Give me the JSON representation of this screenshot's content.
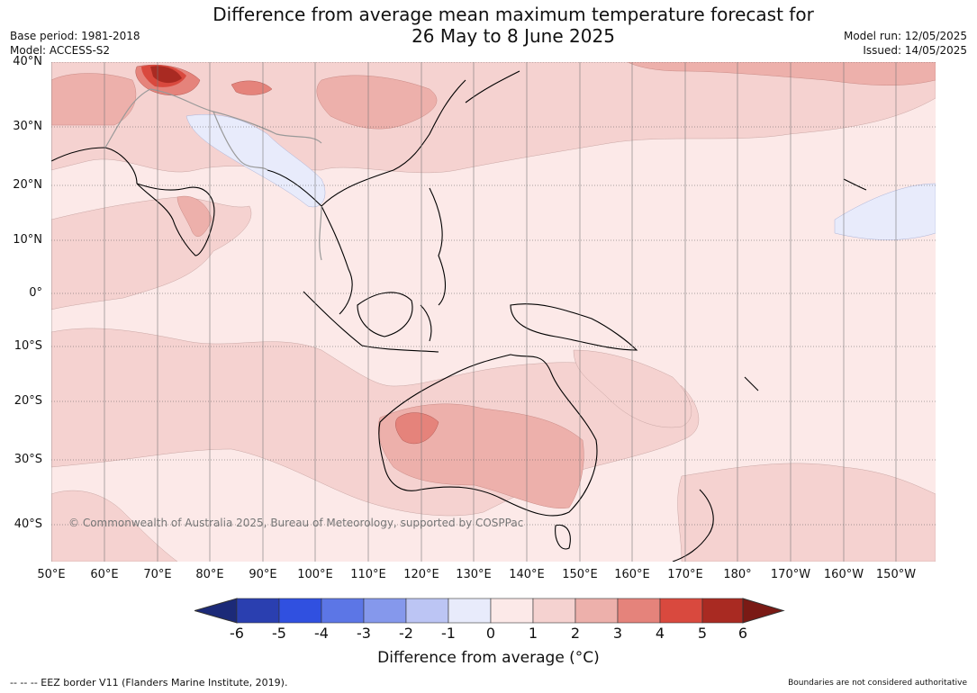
{
  "title_line1": "Difference from average mean maximum temperature forecast for",
  "title_line2": "26 May to 8 June 2025",
  "meta_left": [
    "Base period: 1981-2018",
    "Model: ACCESS-S2"
  ],
  "meta_right": [
    "Model run: 12/05/2025",
    "Issued: 14/05/2025"
  ],
  "lat_labels": [
    "40°N",
    "30°N",
    "20°N",
    "10°N",
    "0°",
    "10°S",
    "20°S",
    "30°S",
    "40°S"
  ],
  "lon_labels": [
    "50°E",
    "60°E",
    "70°E",
    "80°E",
    "90°E",
    "100°E",
    "110°E",
    "120°E",
    "130°E",
    "140°E",
    "150°E",
    "160°E",
    "170°E",
    "180°",
    "170°W",
    "160°W",
    "150°W"
  ],
  "copyright": "© Commonwealth of Australia 2025, Bureau of Meteorology, supported by COSPPac",
  "colorbar": {
    "label": "Difference from average (°C)",
    "ticks": [
      "-6",
      "-5",
      "-4",
      "-3",
      "-2",
      "-1",
      "0",
      "1",
      "2",
      "3",
      "4",
      "5",
      "6"
    ],
    "colors": [
      "#1c2a78",
      "#2a3fb0",
      "#3050e0",
      "#5c76e6",
      "#8598ec",
      "#bcc5f4",
      "#e8ebfb",
      "#fce9e8",
      "#f5d2d0",
      "#edb0ab",
      "#e5837b",
      "#d9493e",
      "#a92a22",
      "#7a1a15"
    ]
  },
  "footer_left": "--  --  -- EEZ border V11 (Flanders Marine Institute, 2019).",
  "footer_right": "Boundaries are not considered authoritative",
  "map_regions": [
    {
      "name": "background",
      "color": "#fce9e8"
    },
    {
      "name": "anomaly-1-2",
      "color": "#f5d2d0"
    },
    {
      "name": "anomaly-2-3",
      "color": "#edb0ab"
    },
    {
      "name": "anomaly-3-4",
      "color": "#e5837b"
    },
    {
      "name": "anomaly-4-5",
      "color": "#d9493e"
    },
    {
      "name": "anomaly-5-6",
      "color": "#a92a22"
    },
    {
      "name": "anomaly-neg",
      "color": "#e8ebfb"
    }
  ]
}
